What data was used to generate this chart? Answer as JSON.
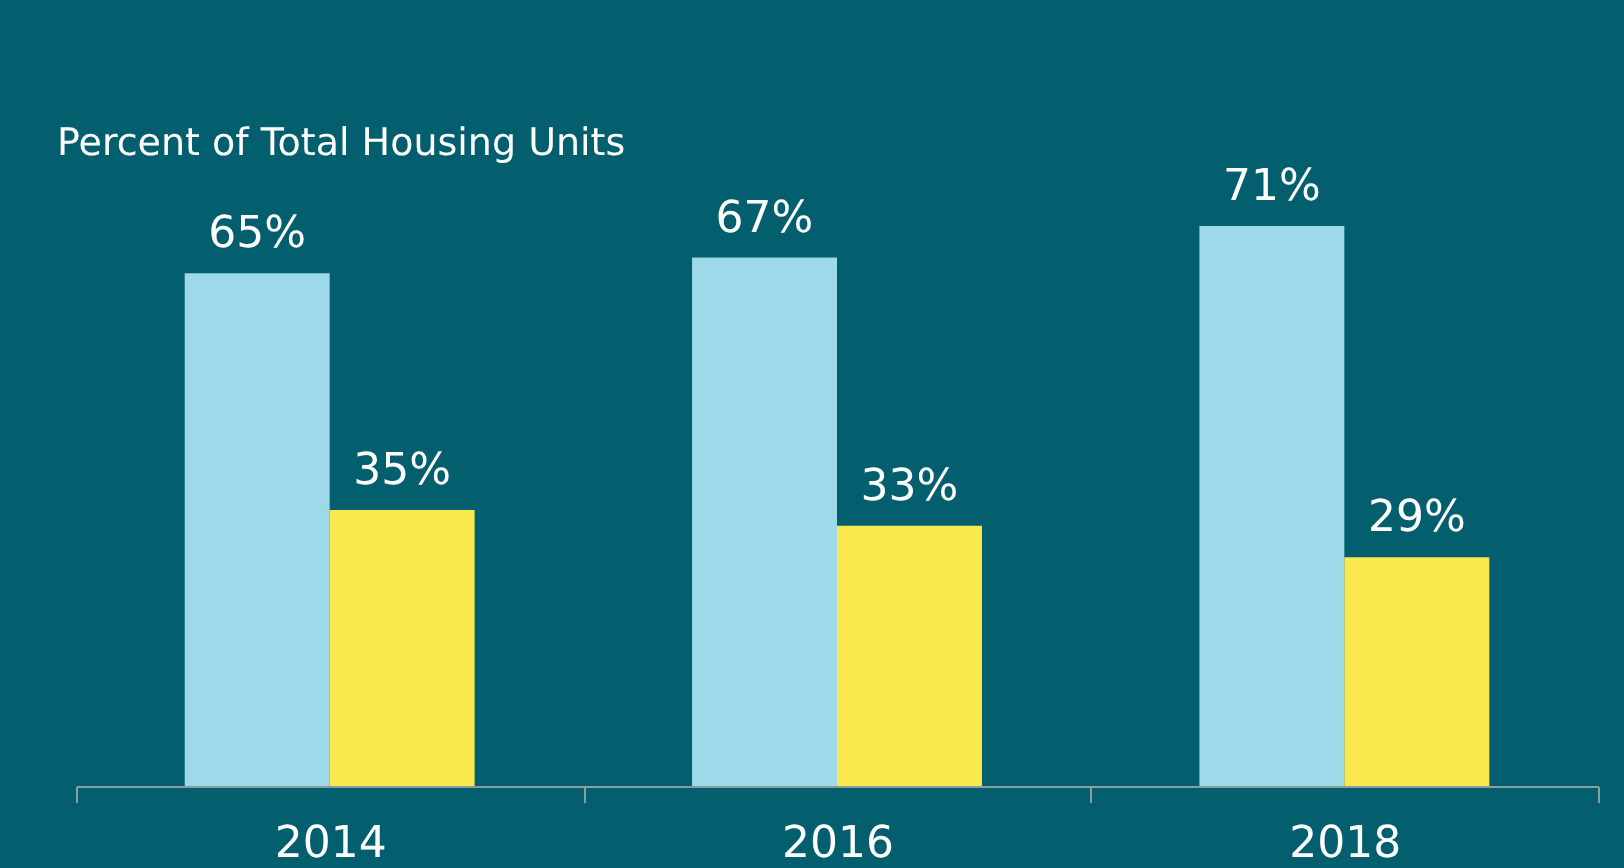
{
  "chart_data": {
    "type": "bar",
    "ylabel": "Percent of Total Housing Units",
    "categories": [
      "2014",
      "2016",
      "2018"
    ],
    "series": [
      {
        "color": "#9dd9e9",
        "values": [
          65,
          67,
          71
        ],
        "value_labels": [
          "65%",
          "67%",
          "71%"
        ]
      },
      {
        "color": "#f9e94e",
        "values": [
          35,
          33,
          29
        ],
        "value_labels": [
          "35%",
          "33%",
          "29%"
        ]
      }
    ]
  }
}
